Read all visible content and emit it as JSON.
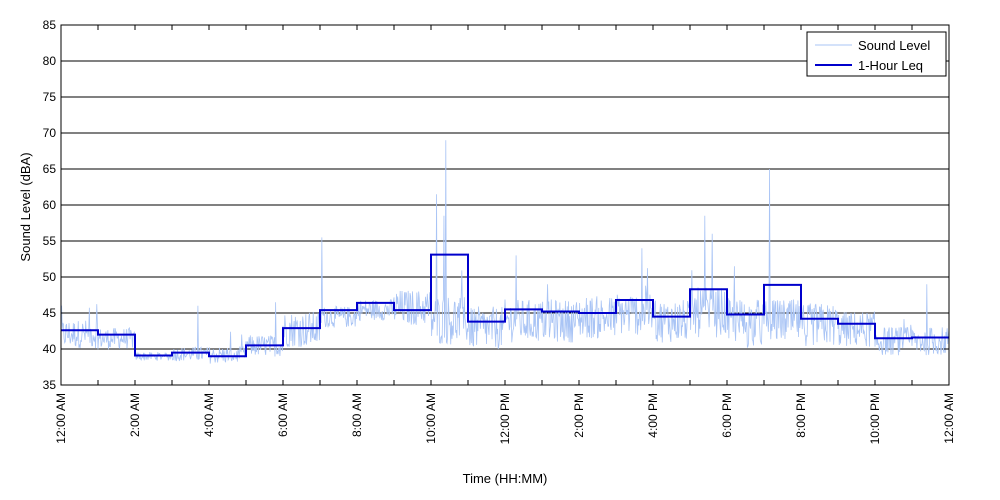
{
  "chart_data": {
    "type": "line",
    "title": "",
    "xlabel": "Time (HH:MM)",
    "ylabel": "Sound Level (dBA)",
    "xlim": [
      0,
      24
    ],
    "ylim": [
      35,
      85
    ],
    "y_ticks": [
      35,
      40,
      45,
      50,
      55,
      60,
      65,
      70,
      75,
      80,
      85
    ],
    "x_ticks": [
      0,
      1,
      2,
      3,
      4,
      5,
      6,
      7,
      8,
      9,
      10,
      11,
      12,
      13,
      14,
      15,
      16,
      17,
      18,
      19,
      20,
      21,
      22,
      23,
      24
    ],
    "x_tick_labels": [
      {
        "x": 0,
        "label": "12:00 AM"
      },
      {
        "x": 2,
        "label": "2:00 AM"
      },
      {
        "x": 4,
        "label": "4:00 AM"
      },
      {
        "x": 6,
        "label": "6:00 AM"
      },
      {
        "x": 8,
        "label": "8:00 AM"
      },
      {
        "x": 10,
        "label": "10:00 AM"
      },
      {
        "x": 12,
        "label": "12:00 PM"
      },
      {
        "x": 14,
        "label": "2:00 PM"
      },
      {
        "x": 16,
        "label": "4:00 PM"
      },
      {
        "x": 18,
        "label": "6:00 PM"
      },
      {
        "x": 20,
        "label": "8:00 PM"
      },
      {
        "x": 22,
        "label": "10:00 PM"
      },
      {
        "x": 24,
        "label": "12:00 AM"
      }
    ],
    "grid": "horizontal",
    "legend_position": "top-right",
    "legend": [
      "Sound Level",
      "1-Hour Leq"
    ],
    "series": [
      {
        "name": "Sound Level",
        "kind": "noisy-trace",
        "color": "#a9c4f5",
        "hourly_base": [
          41.5,
          41.0,
          38.8,
          39.0,
          38.8,
          40.0,
          42.0,
          44.0,
          45.0,
          45.0,
          43.0,
          42.0,
          43.0,
          43.0,
          43.5,
          44.0,
          43.0,
          44.0,
          42.5,
          43.0,
          42.5,
          42.0,
          40.5,
          40.5
        ],
        "hourly_spread": [
          2.0,
          1.5,
          0.6,
          1.0,
          1.2,
          1.5,
          2.5,
          1.5,
          1.5,
          2.5,
          3.5,
          3.0,
          3.0,
          3.0,
          3.0,
          3.0,
          3.0,
          3.5,
          3.5,
          3.0,
          3.0,
          2.5,
          2.0,
          2.0
        ],
        "peaks": [
          {
            "x": 7.05,
            "y": 55.5
          },
          {
            "x": 10.15,
            "y": 61.5
          },
          {
            "x": 10.4,
            "y": 69.0
          },
          {
            "x": 10.35,
            "y": 58.5
          },
          {
            "x": 12.3,
            "y": 53.0
          },
          {
            "x": 15.7,
            "y": 54.0
          },
          {
            "x": 17.4,
            "y": 58.5
          },
          {
            "x": 17.6,
            "y": 56.0
          },
          {
            "x": 19.15,
            "y": 65.0
          },
          {
            "x": 18.2,
            "y": 51.5
          },
          {
            "x": 23.4,
            "y": 49.0
          },
          {
            "x": 3.7,
            "y": 46.0
          },
          {
            "x": 5.8,
            "y": 46.5
          }
        ]
      },
      {
        "name": "1-Hour Leq",
        "kind": "step",
        "color": "#0000cc",
        "values": [
          42.6,
          42.0,
          39.1,
          39.5,
          39.0,
          40.5,
          42.9,
          45.4,
          46.4,
          45.4,
          53.1,
          43.8,
          45.5,
          45.2,
          45.0,
          46.8,
          44.5,
          48.3,
          44.8,
          48.9,
          44.2,
          43.5,
          41.5,
          41.6
        ]
      }
    ]
  }
}
